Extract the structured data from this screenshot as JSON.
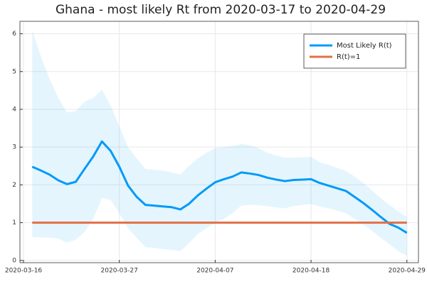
{
  "chart_data": {
    "type": "line",
    "title": "Ghana - most likely Rt from 2020-03-17 to 2020-04-29",
    "x": [
      "2020-03-17",
      "2020-03-18",
      "2020-03-19",
      "2020-03-20",
      "2020-03-21",
      "2020-03-22",
      "2020-03-23",
      "2020-03-24",
      "2020-03-25",
      "2020-03-26",
      "2020-03-27",
      "2020-03-28",
      "2020-03-29",
      "2020-03-30",
      "2020-03-31",
      "2020-04-01",
      "2020-04-02",
      "2020-04-03",
      "2020-04-04",
      "2020-04-05",
      "2020-04-06",
      "2020-04-07",
      "2020-04-08",
      "2020-04-09",
      "2020-04-10",
      "2020-04-11",
      "2020-04-12",
      "2020-04-13",
      "2020-04-14",
      "2020-04-15",
      "2020-04-16",
      "2020-04-17",
      "2020-04-18",
      "2020-04-19",
      "2020-04-20",
      "2020-04-21",
      "2020-04-22",
      "2020-04-23",
      "2020-04-24",
      "2020-04-25",
      "2020-04-26",
      "2020-04-27",
      "2020-04-28",
      "2020-04-29"
    ],
    "series": [
      {
        "name": "Most Likely R(t)",
        "color": "#009af9",
        "values": [
          2.48,
          2.38,
          2.27,
          2.12,
          2.02,
          2.08,
          2.42,
          2.75,
          3.15,
          2.9,
          2.48,
          1.98,
          1.68,
          1.47,
          1.45,
          1.43,
          1.41,
          1.35,
          1.5,
          1.72,
          1.9,
          2.07,
          2.15,
          2.22,
          2.33,
          2.3,
          2.26,
          2.19,
          2.14,
          2.1,
          2.13,
          2.14,
          2.15,
          2.05,
          1.98,
          1.91,
          1.84,
          1.68,
          1.52,
          1.34,
          1.15,
          0.97,
          0.87,
          0.73
        ],
        "lower": [
          0.62,
          0.61,
          0.6,
          0.58,
          0.47,
          0.55,
          0.75,
          1.1,
          1.65,
          1.6,
          1.25,
          0.85,
          0.6,
          0.35,
          0.33,
          0.3,
          0.28,
          0.25,
          0.45,
          0.7,
          0.85,
          1.0,
          1.1,
          1.25,
          1.45,
          1.47,
          1.46,
          1.44,
          1.4,
          1.38,
          1.44,
          1.47,
          1.49,
          1.43,
          1.38,
          1.32,
          1.25,
          1.1,
          0.95,
          0.78,
          0.6,
          0.43,
          0.25,
          0.12
        ],
        "upper": [
          6.1,
          5.4,
          4.8,
          4.3,
          3.92,
          3.95,
          4.2,
          4.3,
          4.52,
          4.1,
          3.55,
          3.0,
          2.7,
          2.42,
          2.4,
          2.38,
          2.33,
          2.28,
          2.5,
          2.7,
          2.85,
          2.97,
          3.0,
          3.03,
          3.08,
          3.05,
          2.97,
          2.85,
          2.78,
          2.72,
          2.72,
          2.73,
          2.74,
          2.6,
          2.53,
          2.45,
          2.37,
          2.22,
          2.05,
          1.85,
          1.65,
          1.47,
          1.3,
          1.15
        ]
      },
      {
        "name": "R(t)=1",
        "color": "#e26f46",
        "values": [
          1,
          1,
          1,
          1,
          1,
          1,
          1,
          1,
          1,
          1,
          1,
          1,
          1,
          1,
          1,
          1,
          1,
          1,
          1,
          1,
          1,
          1,
          1,
          1,
          1,
          1,
          1,
          1,
          1,
          1,
          1,
          1,
          1,
          1,
          1,
          1,
          1,
          1,
          1,
          1,
          1,
          1,
          1,
          1
        ]
      }
    ],
    "xlim": [
      "2020-03-16",
      "2020-04-30"
    ],
    "xticks": [
      "2020-03-16",
      "2020-03-27",
      "2020-04-07",
      "2020-04-18",
      "2020-04-29"
    ],
    "ylim": [
      -0.06,
      6.33
    ],
    "yticks": [
      0,
      1,
      2,
      3,
      4,
      5,
      6
    ],
    "grid": true,
    "legend": "top right"
  }
}
